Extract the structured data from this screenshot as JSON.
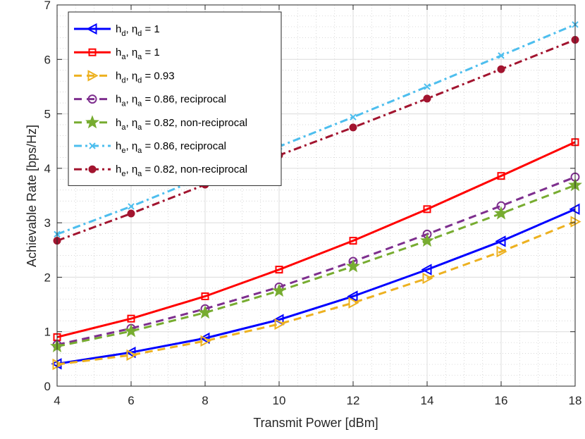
{
  "chart_data": {
    "type": "line",
    "title": "",
    "xlabel": "Transmit Power [dBm]",
    "ylabel": "Achievable Rate [bps/Hz]",
    "xlim": [
      4,
      18
    ],
    "ylim": [
      0,
      7
    ],
    "xticks": [
      "4",
      "6",
      "8",
      "10",
      "12",
      "14",
      "16",
      "18"
    ],
    "yticks": [
      "0",
      "1",
      "2",
      "3",
      "4",
      "5",
      "6",
      "7"
    ],
    "grid": true,
    "legend_position": "top-left",
    "x": [
      4,
      6,
      8,
      10,
      12,
      14,
      16,
      18
    ],
    "series": [
      {
        "name": "h_d, η_d = 1",
        "legend": {
          "a": "h",
          "a_sub": "d",
          "b": ", ",
          "c": "η",
          "c_sub": "d",
          "rest": " = 1"
        },
        "color": "#0000ff",
        "dash": "solid",
        "marker": "triangle-left",
        "values": [
          0.41,
          0.62,
          0.88,
          1.22,
          1.65,
          2.14,
          2.66,
          3.25
        ]
      },
      {
        "name": "h_a, η_a = 1",
        "legend": {
          "a": "h",
          "a_sub": "a",
          "b": ", ",
          "c": "η",
          "c_sub": "a",
          "rest": " = 1"
        },
        "color": "#ff0000",
        "dash": "solid",
        "marker": "square",
        "values": [
          0.9,
          1.24,
          1.65,
          2.14,
          2.67,
          3.25,
          3.86,
          4.48
        ]
      },
      {
        "name": "h_d, η_d = 0.93",
        "legend": {
          "a": "h",
          "a_sub": "d",
          "b": ", ",
          "c": "η",
          "c_sub": "d",
          "rest": " = 0.93"
        },
        "color": "#edb120",
        "dash": "dashed",
        "marker": "triangle-right",
        "values": [
          0.4,
          0.57,
          0.83,
          1.14,
          1.53,
          1.98,
          2.47,
          3.02
        ]
      },
      {
        "name": "h_a, η_a = 0.86, reciprocal",
        "legend": {
          "a": "h",
          "a_sub": "a",
          "b": ", ",
          "c": "η",
          "c_sub": "a",
          "rest": " = 0.86, reciprocal"
        },
        "color": "#7e2f8e",
        "dash": "dashed",
        "marker": "circle-open",
        "values": [
          0.76,
          1.06,
          1.42,
          1.82,
          2.29,
          2.79,
          3.31,
          3.84
        ]
      },
      {
        "name": "h_a, η_a = 0.82, non-reciprocal",
        "legend": {
          "a": "h",
          "a_sub": "a",
          "b": ", ",
          "c": "η",
          "c_sub": "a",
          "rest": " = 0.82, non-reciprocal"
        },
        "color": "#77ac30",
        "dash": "dashed",
        "marker": "star",
        "values": [
          0.73,
          1.01,
          1.35,
          1.75,
          2.2,
          2.67,
          3.17,
          3.69
        ]
      },
      {
        "name": "h_e, η_a = 0.86, reciprocal",
        "legend": {
          "a": "h",
          "a_sub": "e",
          "b": ", ",
          "c": "η",
          "c_sub": "a",
          "rest": " = 0.86, reciprocal"
        },
        "color": "#4dbeee",
        "dash": "dashdot",
        "marker": "x",
        "values": [
          2.79,
          3.3,
          3.85,
          4.4,
          4.94,
          5.5,
          6.07,
          6.64
        ]
      },
      {
        "name": "h_e, η_a = 0.82, non-reciprocal",
        "legend": {
          "a": "h",
          "a_sub": "e",
          "b": ", ",
          "c": "η",
          "c_sub": "a",
          "rest": " = 0.82, non-reciprocal"
        },
        "color": "#a2142f",
        "dash": "dashdot",
        "marker": "circle-filled",
        "values": [
          2.67,
          3.17,
          3.7,
          4.24,
          4.75,
          5.28,
          5.82,
          6.36
        ]
      }
    ]
  }
}
